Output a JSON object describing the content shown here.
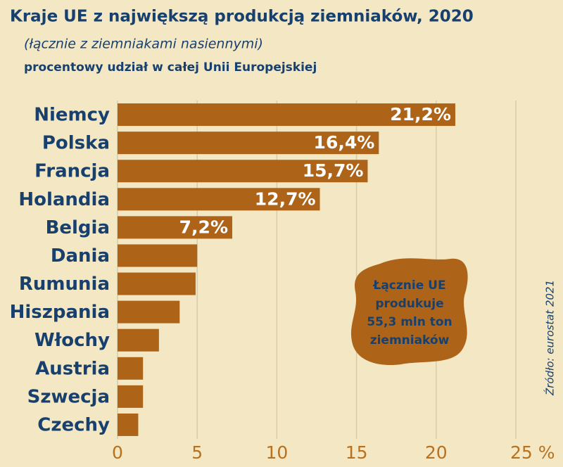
{
  "chart_data": {
    "type": "hbar",
    "title": "Kraje UE z największą produkcją ziemniaków, 2020",
    "subtitle": "(łącznie z ziemniakami nasiennymi)",
    "description": "procentowy udział w całej Unii Europejskiej",
    "categories": [
      "Niemcy",
      "Polska",
      "Francja",
      "Holandia",
      "Belgia",
      "Dania",
      "Rumunia",
      "Hiszpania",
      "Włochy",
      "Austria",
      "Szwecja",
      "Czechy"
    ],
    "values": [
      21.2,
      16.4,
      15.7,
      12.7,
      7.2,
      5.0,
      4.9,
      3.9,
      2.6,
      1.6,
      1.6,
      1.3
    ],
    "value_labels": [
      "21,2%",
      "16,4%",
      "15,7%",
      "12,7%",
      "7,2%",
      null,
      null,
      null,
      null,
      null,
      null,
      null
    ],
    "color": "#ad6418",
    "xlim": [
      0,
      25
    ],
    "xticks": [
      0,
      5,
      10,
      15,
      20,
      {
        "value": 25,
        "label": "25 %"
      }
    ],
    "grid": true,
    "annotation": [
      "Łącznie UE",
      "produkuje",
      "55,3 mln ton",
      "ziemniaków"
    ],
    "source": "Źródło: eurostat 2021"
  }
}
